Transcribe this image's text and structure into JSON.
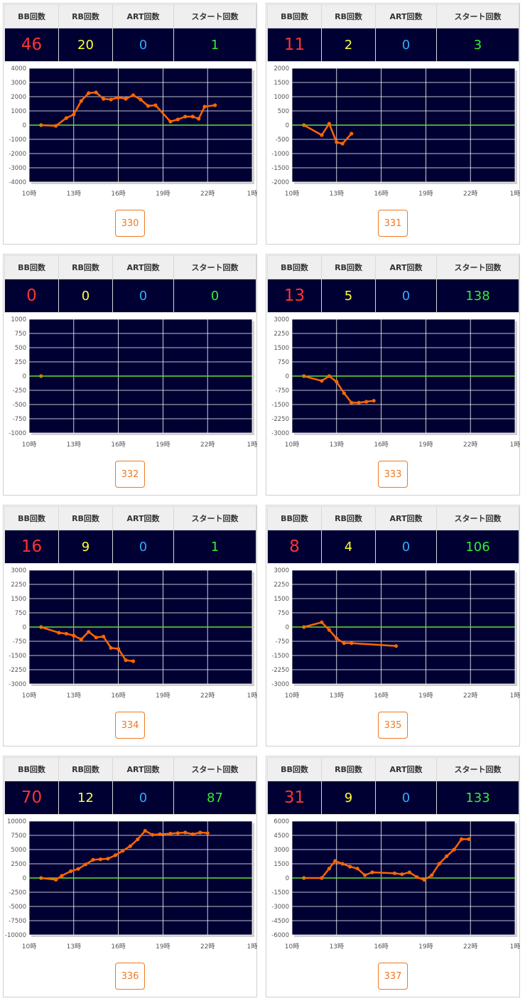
{
  "stats_headers": {
    "bb": "BB回数",
    "rb": "RB回数",
    "art": "ART回数",
    "start": "スタート回数"
  },
  "colors": {
    "bb": "#ff3333",
    "rb": "#ffff33",
    "art": "#33aaff",
    "start": "#33ee33",
    "line": "#ff6600",
    "zero": "#66dd33",
    "plot_bg": "#000033"
  },
  "x_ticks": [
    "10時",
    "13時",
    "16時",
    "19時",
    "22時",
    "1時"
  ],
  "cards": [
    {
      "id": "330",
      "bb": "46",
      "rb": "20",
      "art": "0",
      "start": "1",
      "chart_data": {
        "type": "line",
        "ylim": [
          -4000,
          4000
        ],
        "yticks": [
          4000,
          3000,
          2000,
          1000,
          0,
          -1000,
          -2000,
          -3000,
          -4000
        ],
        "x": [
          10.8,
          11.8,
          12.5,
          13,
          13.5,
          14,
          14.5,
          15,
          15.5,
          16,
          16.5,
          17,
          17.5,
          18,
          18.5,
          19.5,
          20,
          20.5,
          21,
          21.4,
          21.8,
          22.5
        ],
        "y": [
          0,
          -50,
          500,
          750,
          1700,
          2250,
          2300,
          1850,
          1800,
          1950,
          1850,
          2100,
          1800,
          1350,
          1400,
          250,
          400,
          600,
          600,
          450,
          1300,
          1400
        ]
      }
    },
    {
      "id": "331",
      "bb": "11",
      "rb": "2",
      "art": "0",
      "start": "3",
      "chart_data": {
        "type": "line",
        "ylim": [
          -2000,
          2000
        ],
        "yticks": [
          2000,
          1500,
          1000,
          500,
          0,
          -500,
          -1000,
          -1500,
          -2000
        ],
        "x": [
          10.8,
          12,
          12.5,
          13,
          13.4,
          14
        ],
        "y": [
          0,
          -350,
          50,
          -600,
          -650,
          -300
        ]
      }
    },
    {
      "id": "332",
      "bb": "0",
      "rb": "0",
      "art": "0",
      "start": "0",
      "chart_data": {
        "type": "line",
        "ylim": [
          -1000,
          1000
        ],
        "yticks": [
          1000,
          750,
          500,
          250,
          0,
          -250,
          -500,
          -750,
          -1000
        ],
        "x": [
          10.8
        ],
        "y": [
          0
        ]
      }
    },
    {
      "id": "333",
      "bb": "13",
      "rb": "5",
      "art": "0",
      "start": "138",
      "chart_data": {
        "type": "line",
        "ylim": [
          -3000,
          3000
        ],
        "yticks": [
          3000,
          2250,
          1500,
          750,
          0,
          -750,
          -1500,
          -2250,
          -3000
        ],
        "x": [
          10.8,
          12,
          12.5,
          13,
          13.5,
          14,
          14.5,
          15,
          15.5
        ],
        "y": [
          0,
          -250,
          0,
          -300,
          -900,
          -1400,
          -1400,
          -1350,
          -1300
        ]
      }
    },
    {
      "id": "334",
      "bb": "16",
      "rb": "9",
      "art": "0",
      "start": "1",
      "chart_data": {
        "type": "line",
        "ylim": [
          -3000,
          3000
        ],
        "yticks": [
          3000,
          2250,
          1500,
          750,
          0,
          -750,
          -1500,
          -2250,
          -3000
        ],
        "x": [
          10.8,
          12,
          12.5,
          13,
          13.5,
          14,
          14.5,
          15,
          15.5,
          16,
          16.5,
          17
        ],
        "y": [
          0,
          -300,
          -350,
          -450,
          -650,
          -250,
          -550,
          -500,
          -1100,
          -1150,
          -1750,
          -1800
        ]
      }
    },
    {
      "id": "335",
      "bb": "8",
      "rb": "4",
      "art": "0",
      "start": "106",
      "chart_data": {
        "type": "line",
        "ylim": [
          -3000,
          3000
        ],
        "yticks": [
          3000,
          2250,
          1500,
          750,
          0,
          -750,
          -1500,
          -2250,
          -3000
        ],
        "x": [
          10.8,
          12,
          12.5,
          13,
          13.5,
          14,
          17
        ],
        "y": [
          0,
          250,
          -150,
          -600,
          -850,
          -850,
          -1000
        ]
      }
    },
    {
      "id": "336",
      "bb": "70",
      "rb": "12",
      "art": "0",
      "start": "87",
      "chart_data": {
        "type": "line",
        "ylim": [
          -10000,
          10000
        ],
        "yticks": [
          10000,
          7500,
          5000,
          2500,
          0,
          -2500,
          -5000,
          -7500,
          -10000
        ],
        "x": [
          10.8,
          11.8,
          12.2,
          12.8,
          13.3,
          13.8,
          14.3,
          14.8,
          15.3,
          15.8,
          16.3,
          16.8,
          17.3,
          17.8,
          18.3,
          18.8,
          19.5,
          20,
          20.5,
          21,
          21.5,
          22
        ],
        "y": [
          0,
          -300,
          400,
          1200,
          1600,
          2400,
          3200,
          3300,
          3400,
          4000,
          4800,
          5600,
          6800,
          8300,
          7600,
          7700,
          7800,
          7900,
          8000,
          7700,
          8000,
          7900
        ]
      }
    },
    {
      "id": "337",
      "bb": "31",
      "rb": "9",
      "art": "0",
      "start": "133",
      "chart_data": {
        "type": "line",
        "ylim": [
          -6000,
          6000
        ],
        "yticks": [
          6000,
          4500,
          3000,
          1500,
          0,
          -1500,
          -3000,
          -4500,
          -6000
        ],
        "x": [
          10.8,
          12,
          12.5,
          12.9,
          13.4,
          13.9,
          14.4,
          14.9,
          15.4,
          16.9,
          17.4,
          17.9,
          18.4,
          18.9,
          19.4,
          19.9,
          20.4,
          20.9,
          21.4,
          21.9
        ],
        "y": [
          0,
          0,
          1000,
          1800,
          1500,
          1200,
          1000,
          300,
          600,
          500,
          400,
          600,
          100,
          -200,
          300,
          1500,
          2300,
          3000,
          4100,
          4100
        ]
      }
    }
  ]
}
